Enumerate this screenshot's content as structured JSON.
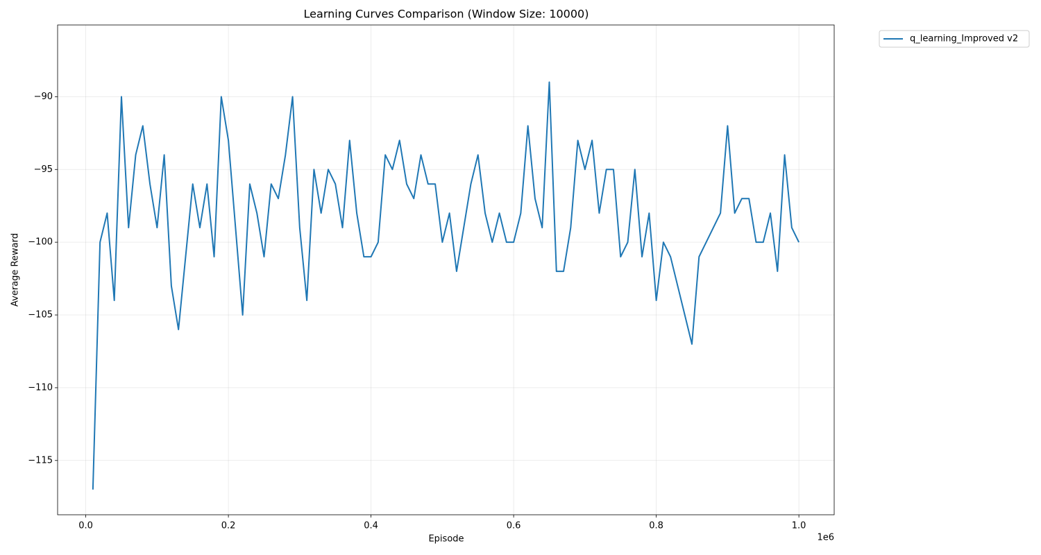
{
  "chart_data": {
    "type": "line",
    "title": "Learning Curves Comparison (Window Size: 10000)",
    "x_label": "Episode",
    "y_label": "Average Reward",
    "x_offset_label": "1e6",
    "x": [
      10000,
      20000,
      30000,
      40000,
      50000,
      60000,
      70000,
      80000,
      90000,
      100000,
      110000,
      120000,
      130000,
      140000,
      150000,
      160000,
      170000,
      180000,
      190000,
      200000,
      210000,
      220000,
      230000,
      240000,
      250000,
      260000,
      270000,
      280000,
      290000,
      300000,
      310000,
      320000,
      330000,
      340000,
      350000,
      360000,
      370000,
      380000,
      390000,
      400000,
      410000,
      420000,
      430000,
      440000,
      450000,
      460000,
      470000,
      480000,
      490000,
      500000,
      510000,
      520000,
      530000,
      540000,
      550000,
      560000,
      570000,
      580000,
      590000,
      600000,
      610000,
      620000,
      630000,
      640000,
      650000,
      660000,
      670000,
      680000,
      690000,
      700000,
      710000,
      720000,
      730000,
      740000,
      750000,
      760000,
      770000,
      780000,
      790000,
      800000,
      810000,
      820000,
      830000,
      840000,
      850000,
      860000,
      870000,
      880000,
      890000,
      900000,
      910000,
      920000,
      930000,
      940000,
      950000,
      960000,
      970000,
      980000,
      990000,
      1000000
    ],
    "series": [
      {
        "name": "q_learning_Improved v2",
        "color": "#1f77b4",
        "values": [
          -117,
          -100,
          -98,
          -104,
          -90,
          -99,
          -94,
          -92,
          -96,
          -99,
          -94,
          -103,
          -106,
          -101,
          -96,
          -99,
          -96,
          -101,
          -90,
          -93,
          -99,
          -105,
          -96,
          -98,
          -101,
          -96,
          -97,
          -94,
          -90,
          -99,
          -104,
          -95,
          -98,
          -95,
          -96,
          -99,
          -93,
          -98,
          -101,
          -101,
          -100,
          -94,
          -95,
          -93,
          -96,
          -97,
          -94,
          -96,
          -96,
          -100,
          -98,
          -102,
          -99,
          -96,
          -94,
          -98,
          -100,
          -98,
          -100,
          -100,
          -98,
          -92,
          -97,
          -99,
          -89,
          -102,
          -102,
          -99,
          -93,
          -95,
          -93,
          -98,
          -95,
          -95,
          -101,
          -100,
          -95,
          -101,
          -98,
          -104,
          -100,
          -101,
          -103,
          -105,
          -107,
          -101,
          -100,
          -99,
          -98,
          -92,
          -98,
          -97,
          -97,
          -100,
          -100,
          -98,
          -102,
          -94,
          -99,
          -100
        ]
      }
    ],
    "xlim": [
      -39500,
      1049500
    ],
    "ylim": [
      -118.73,
      -85.07
    ],
    "xticks": [
      {
        "value": 0,
        "label": "0.0"
      },
      {
        "value": 200000,
        "label": "0.2"
      },
      {
        "value": 400000,
        "label": "0.4"
      },
      {
        "value": 600000,
        "label": "0.6"
      },
      {
        "value": 800000,
        "label": "0.8"
      },
      {
        "value": 1000000,
        "label": "1.0"
      }
    ],
    "yticks": [
      {
        "value": -115,
        "label": "−115"
      },
      {
        "value": -110,
        "label": "−110"
      },
      {
        "value": -105,
        "label": "−105"
      },
      {
        "value": -100,
        "label": "−100"
      },
      {
        "value": -95,
        "label": "−95"
      },
      {
        "value": -90,
        "label": "−90"
      }
    ],
    "grid": true,
    "legend": "outside-upper-right"
  }
}
